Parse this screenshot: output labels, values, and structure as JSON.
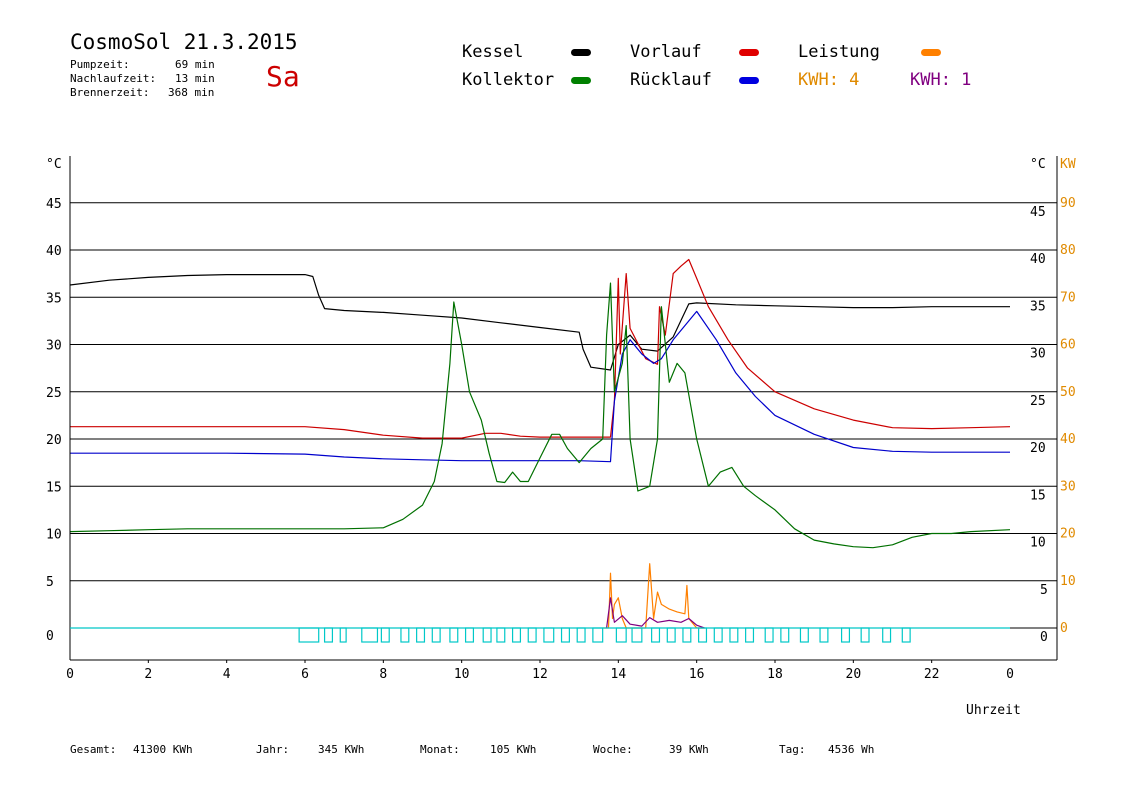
{
  "header": {
    "title": "CosmoSol 21.3.2015",
    "day": "Sa",
    "pumpzeit_label": "Pumpzeit:",
    "pumpzeit_value": "69 min",
    "nachlauf_label": "Nachlaufzeit:",
    "nachlauf_value": "13 min",
    "brenner_label": "Brennerzeit:",
    "brenner_value": "368 min"
  },
  "legend": {
    "kessel": "Kessel",
    "vorlauf": "Vorlauf",
    "leistung": "Leistung",
    "kollektor": "Kollektor",
    "ruecklauf": "Rücklauf",
    "kwh_orange": "KWH: 4",
    "kwh_purple": "KWH: 1"
  },
  "colors": {
    "kessel": "#000000",
    "vorlauf": "#cc0000",
    "leistung": "#ff8000",
    "kollektor": "#007000",
    "ruecklauf": "#0000cc",
    "kwh_orange": "#e08a00",
    "kwh_purple": "#800080",
    "pump": "#00c8c8",
    "kw_axis": "#e08a00"
  },
  "footer": {
    "gesamt_label": "Gesamt:",
    "gesamt_value": "41300 KWh",
    "jahr_label": "Jahr:",
    "jahr_value": "345 KWh",
    "monat_label": "Monat:",
    "monat_value": "105 KWh",
    "woche_label": "Woche:",
    "woche_value": "39 KWh",
    "tag_label": "Tag:",
    "tag_value": "4536 Wh"
  },
  "chart_data": {
    "type": "line",
    "xlabel": "Uhrzeit",
    "x_ticks": [
      "0",
      "2",
      "4",
      "6",
      "8",
      "10",
      "12",
      "14",
      "16",
      "18",
      "20",
      "22",
      "0"
    ],
    "xlim": [
      0,
      24
    ],
    "y_left_unit": "°C",
    "y_right_unit": "°C",
    "y2_unit": "KW",
    "ylim": [
      0,
      50
    ],
    "y_ticks": [
      0,
      5,
      10,
      15,
      20,
      25,
      30,
      35,
      40,
      45
    ],
    "y2_ticks": [
      0,
      10,
      20,
      30,
      40,
      50,
      60,
      70,
      80,
      90
    ],
    "grid": true,
    "series": [
      {
        "name": "Kessel",
        "color": "#000000",
        "points": [
          [
            0,
            36.3
          ],
          [
            1,
            36.8
          ],
          [
            2,
            37.1
          ],
          [
            3,
            37.3
          ],
          [
            4,
            37.4
          ],
          [
            5,
            37.4
          ],
          [
            6,
            37.4
          ],
          [
            6.2,
            37.2
          ],
          [
            6.35,
            35.2
          ],
          [
            6.5,
            33.8
          ],
          [
            7,
            33.6
          ],
          [
            8,
            33.4
          ],
          [
            9,
            33.1
          ],
          [
            10,
            32.8
          ],
          [
            11,
            32.3
          ],
          [
            12,
            31.8
          ],
          [
            13,
            31.3
          ],
          [
            13.1,
            29.5
          ],
          [
            13.3,
            27.6
          ],
          [
            13.8,
            27.3
          ],
          [
            14,
            30
          ],
          [
            14.3,
            31
          ],
          [
            14.6,
            29.5
          ],
          [
            15,
            29.3
          ],
          [
            15.4,
            30.8
          ],
          [
            15.8,
            34.3
          ],
          [
            16,
            34.4
          ],
          [
            17,
            34.2
          ],
          [
            18,
            34.1
          ],
          [
            19,
            34.0
          ],
          [
            20,
            33.9
          ],
          [
            21,
            33.9
          ],
          [
            22,
            34.0
          ],
          [
            23,
            34.0
          ],
          [
            24,
            34.0
          ]
        ]
      },
      {
        "name": "Vorlauf",
        "color": "#cc0000",
        "points": [
          [
            0,
            21.3
          ],
          [
            2,
            21.3
          ],
          [
            4,
            21.3
          ],
          [
            6,
            21.3
          ],
          [
            7,
            21
          ],
          [
            8,
            20.4
          ],
          [
            9,
            20.1
          ],
          [
            10,
            20.1
          ],
          [
            10.6,
            20.6
          ],
          [
            11,
            20.6
          ],
          [
            11.5,
            20.3
          ],
          [
            12,
            20.2
          ],
          [
            12.5,
            20.2
          ],
          [
            13,
            20.2
          ],
          [
            13.8,
            20.2
          ],
          [
            13.9,
            24
          ],
          [
            14,
            37
          ],
          [
            14.05,
            29
          ],
          [
            14.2,
            37.5
          ],
          [
            14.3,
            31.7
          ],
          [
            14.7,
            28.5
          ],
          [
            15,
            27.9
          ],
          [
            15.05,
            34
          ],
          [
            15.2,
            31
          ],
          [
            15.4,
            37.5
          ],
          [
            15.6,
            38.3
          ],
          [
            15.8,
            39
          ],
          [
            16,
            37
          ],
          [
            16.3,
            34
          ],
          [
            16.8,
            30.5
          ],
          [
            17.3,
            27.5
          ],
          [
            18,
            25
          ],
          [
            19,
            23.2
          ],
          [
            20,
            22
          ],
          [
            21,
            21.2
          ],
          [
            22,
            21.1
          ],
          [
            23,
            21.2
          ],
          [
            24,
            21.3
          ]
        ]
      },
      {
        "name": "Rücklauf",
        "color": "#0000cc",
        "points": [
          [
            0,
            18.5
          ],
          [
            2,
            18.5
          ],
          [
            4,
            18.5
          ],
          [
            6,
            18.4
          ],
          [
            7,
            18.1
          ],
          [
            8,
            17.9
          ],
          [
            9,
            17.8
          ],
          [
            10,
            17.7
          ],
          [
            11,
            17.7
          ],
          [
            12,
            17.7
          ],
          [
            13,
            17.7
          ],
          [
            13.8,
            17.6
          ],
          [
            13.9,
            24
          ],
          [
            14.1,
            29
          ],
          [
            14.3,
            30.5
          ],
          [
            14.6,
            29
          ],
          [
            14.9,
            28
          ],
          [
            15.1,
            28.5
          ],
          [
            15.4,
            30.5
          ],
          [
            15.7,
            32
          ],
          [
            16,
            33.5
          ],
          [
            16.5,
            30.5
          ],
          [
            17,
            27
          ],
          [
            17.5,
            24.5
          ],
          [
            18,
            22.5
          ],
          [
            19,
            20.5
          ],
          [
            20,
            19.1
          ],
          [
            21,
            18.7
          ],
          [
            22,
            18.6
          ],
          [
            23,
            18.6
          ],
          [
            24,
            18.6
          ]
        ]
      },
      {
        "name": "Kollektor",
        "color": "#007000",
        "points": [
          [
            0,
            10.2
          ],
          [
            1,
            10.3
          ],
          [
            2,
            10.4
          ],
          [
            3,
            10.5
          ],
          [
            4,
            10.5
          ],
          [
            5,
            10.5
          ],
          [
            6,
            10.5
          ],
          [
            7,
            10.5
          ],
          [
            8,
            10.6
          ],
          [
            8.5,
            11.5
          ],
          [
            9,
            13
          ],
          [
            9.3,
            15.5
          ],
          [
            9.5,
            19.5
          ],
          [
            9.7,
            28
          ],
          [
            9.8,
            34.5
          ],
          [
            10,
            30
          ],
          [
            10.2,
            25
          ],
          [
            10.5,
            22
          ],
          [
            10.7,
            18.5
          ],
          [
            10.9,
            15.5
          ],
          [
            11.1,
            15.4
          ],
          [
            11.3,
            16.5
          ],
          [
            11.5,
            15.5
          ],
          [
            11.7,
            15.5
          ],
          [
            12,
            18
          ],
          [
            12.3,
            20.5
          ],
          [
            12.5,
            20.5
          ],
          [
            12.7,
            19
          ],
          [
            13,
            17.5
          ],
          [
            13.3,
            19
          ],
          [
            13.6,
            20
          ],
          [
            13.7,
            31
          ],
          [
            13.8,
            36.5
          ],
          [
            13.9,
            25
          ],
          [
            14.1,
            28
          ],
          [
            14.2,
            32
          ],
          [
            14.3,
            20
          ],
          [
            14.5,
            14.5
          ],
          [
            14.8,
            15
          ],
          [
            15,
            20
          ],
          [
            15.1,
            34
          ],
          [
            15.3,
            26
          ],
          [
            15.5,
            28
          ],
          [
            15.7,
            27
          ],
          [
            16,
            20
          ],
          [
            16.3,
            15
          ],
          [
            16.6,
            16.5
          ],
          [
            16.9,
            17
          ],
          [
            17.2,
            15
          ],
          [
            17.5,
            14
          ],
          [
            18,
            12.5
          ],
          [
            18.5,
            10.5
          ],
          [
            19,
            9.3
          ],
          [
            19.5,
            8.9
          ],
          [
            20,
            8.6
          ],
          [
            20.5,
            8.5
          ],
          [
            21,
            8.8
          ],
          [
            21.5,
            9.6
          ],
          [
            22,
            10
          ],
          [
            22.5,
            10
          ],
          [
            23,
            10.2
          ],
          [
            24,
            10.4
          ]
        ]
      },
      {
        "name": "Leistung",
        "color": "#ff8000",
        "points": [
          [
            13.6,
            0
          ],
          [
            13.75,
            0
          ],
          [
            13.8,
            5.8
          ],
          [
            13.85,
            1
          ],
          [
            13.9,
            2.5
          ],
          [
            14.0,
            3.2
          ],
          [
            14.1,
            1
          ],
          [
            14.2,
            0
          ],
          [
            14.7,
            0
          ],
          [
            14.8,
            6.8
          ],
          [
            14.9,
            1
          ],
          [
            15.0,
            3.8
          ],
          [
            15.1,
            2.5
          ],
          [
            15.3,
            2
          ],
          [
            15.5,
            1.7
          ],
          [
            15.7,
            1.5
          ],
          [
            15.75,
            4.5
          ],
          [
            15.8,
            1
          ],
          [
            16,
            0
          ],
          [
            16.2,
            0
          ]
        ]
      },
      {
        "name": "Pumpe",
        "color": "#800080",
        "points": [
          [
            13.7,
            0
          ],
          [
            13.8,
            3.2
          ],
          [
            13.9,
            0.6
          ],
          [
            14.1,
            1.3
          ],
          [
            14.3,
            0.4
          ],
          [
            14.6,
            0.2
          ],
          [
            14.8,
            1.1
          ],
          [
            15,
            0.6
          ],
          [
            15.3,
            0.8
          ],
          [
            15.6,
            0.6
          ],
          [
            15.8,
            1.0
          ],
          [
            16,
            0.3
          ],
          [
            16.2,
            0
          ]
        ]
      }
    ],
    "pump_blocks": [
      [
        5.85,
        6.35
      ],
      [
        6.5,
        6.7
      ],
      [
        6.9,
        7.05
      ],
      [
        7.45,
        7.85
      ],
      [
        7.95,
        8.15
      ],
      [
        8.45,
        8.65
      ],
      [
        8.85,
        9.05
      ],
      [
        9.25,
        9.45
      ],
      [
        9.7,
        9.9
      ],
      [
        10.1,
        10.3
      ],
      [
        10.55,
        10.75
      ],
      [
        10.9,
        11.1
      ],
      [
        11.3,
        11.5
      ],
      [
        11.7,
        11.9
      ],
      [
        12.1,
        12.35
      ],
      [
        12.55,
        12.75
      ],
      [
        12.95,
        13.15
      ],
      [
        13.35,
        13.6
      ],
      [
        13.95,
        14.2
      ],
      [
        14.35,
        14.6
      ],
      [
        14.85,
        15.05
      ],
      [
        15.25,
        15.45
      ],
      [
        15.65,
        15.85
      ],
      [
        16.05,
        16.25
      ],
      [
        16.45,
        16.65
      ],
      [
        16.85,
        17.05
      ],
      [
        17.25,
        17.45
      ],
      [
        17.75,
        17.95
      ],
      [
        18.15,
        18.35
      ],
      [
        18.65,
        18.85
      ],
      [
        19.15,
        19.35
      ],
      [
        19.7,
        19.9
      ],
      [
        20.2,
        20.4
      ],
      [
        20.75,
        20.95
      ],
      [
        21.25,
        21.45
      ]
    ]
  }
}
